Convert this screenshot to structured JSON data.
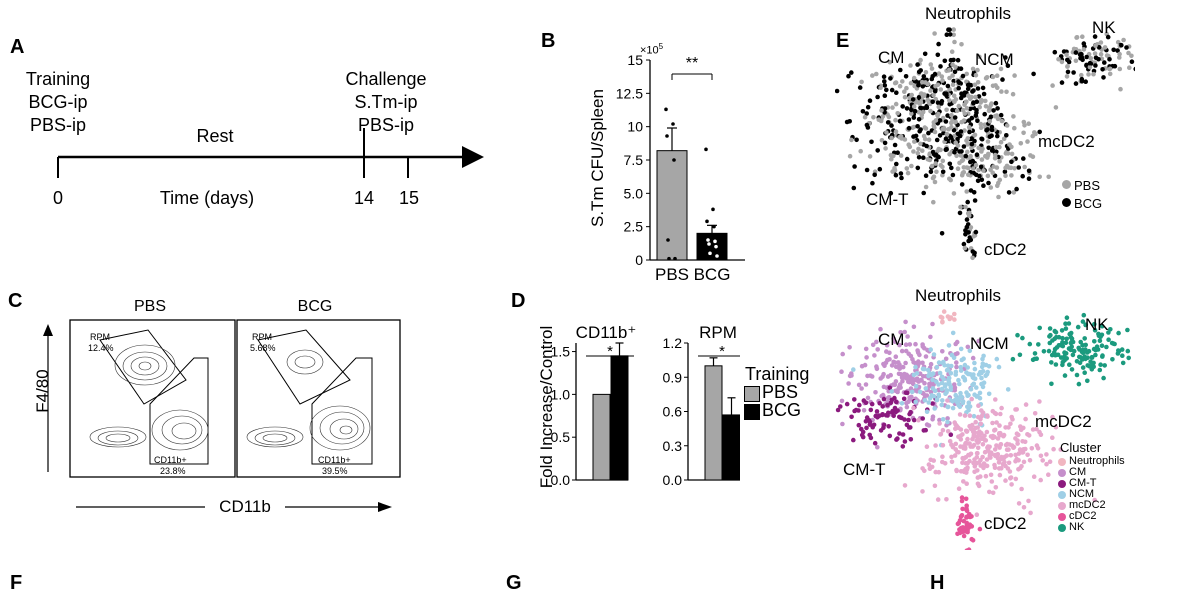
{
  "panel_letters": {
    "A": "A",
    "B": "B",
    "C": "C",
    "D": "D",
    "E": "E",
    "F": "F",
    "G": "G",
    "H": "H"
  },
  "panelA": {
    "training": [
      "Training",
      "BCG-ip",
      "PBS-ip"
    ],
    "challenge": [
      "Challenge",
      "S.Tm-ip",
      "PBS-ip"
    ],
    "rest": "Rest",
    "time_label": "Time (days)",
    "ticks": [
      "0",
      "14",
      "15"
    ]
  },
  "panelB": {
    "ylabel": "S.Tm CFU/Spleen",
    "multiplier": "×10",
    "multiplier_exp": "5",
    "sig": "**"
  },
  "panelC": {
    "pbs": "PBS",
    "bcg": "BCG",
    "ylabel": "F4/80",
    "xlabel": "CD11b",
    "pbs_rpm": "RPM",
    "pbs_rpm_pct": "12.4%",
    "pbs_cd11b": "CD11b+",
    "pbs_cd11b_pct": "23.8%",
    "bcg_rpm": "RPM",
    "bcg_rpm_pct": "5.68%",
    "bcg_cd11b": "CD11b+",
    "bcg_cd11b_pct": "39.5%"
  },
  "panelD": {
    "ylabel": "Fold Increase/Control",
    "legend_title": "Training",
    "legend": [
      "PBS",
      "BCG"
    ],
    "sig": "*"
  },
  "panelE": {
    "top_labels": {
      "neutrophils": "Neutrophils",
      "nk": "NK",
      "cm": "CM",
      "ncm": "NCM",
      "mcdc2": "mcDC2",
      "cmt": "CM-T",
      "cdc2": "cDC2"
    },
    "top_legend": [
      "PBS",
      "BCG"
    ],
    "cluster_title": "Cluster",
    "clusters": [
      {
        "name": "Neutrophils",
        "color": "#f1b6c0"
      },
      {
        "name": "CM",
        "color": "#c58fcb"
      },
      {
        "name": "CM-T",
        "color": "#8b1a7e"
      },
      {
        "name": "NCM",
        "color": "#9fcfe6"
      },
      {
        "name": "mcDC2",
        "color": "#e7a8cd"
      },
      {
        "name": "cDC2",
        "color": "#e6559a"
      },
      {
        "name": "NK",
        "color": "#1b9a7e"
      }
    ]
  },
  "chart_data": [
    {
      "type": "bar",
      "title": "",
      "ylabel": "S.Tm CFU/Spleen (×10^5)",
      "categories": [
        "PBS",
        "BCG"
      ],
      "values": [
        8.2,
        2.0
      ],
      "errors": [
        1.7,
        0.6
      ],
      "ylim": [
        0,
        15
      ],
      "yticks": [
        "0",
        "2.5",
        "5.0",
        "7.5",
        "10",
        "12.5",
        "15"
      ],
      "points": {
        "PBS": [
          11.3,
          10.2,
          9.3,
          7.5,
          1.5,
          0.1,
          0.1
        ],
        "BCG": [
          8.3,
          3.8,
          2.9,
          2.5,
          1.5,
          1.4,
          1.2,
          1.0,
          0.5,
          0.3
        ]
      },
      "colors": [
        "#a6a6a6",
        "#000000"
      ]
    },
    {
      "type": "bar",
      "title": "CD11b⁺",
      "categories": [
        "PBS",
        "BCG"
      ],
      "values": [
        1.0,
        1.45
      ],
      "errors": [
        0.0,
        0.15
      ],
      "ylim": [
        0,
        1.6
      ],
      "yticks": [
        "0.0",
        "0.5",
        "1.0",
        "1.5"
      ],
      "colors": [
        "#a6a6a6",
        "#000000"
      ]
    },
    {
      "type": "bar",
      "title": "RPM",
      "categories": [
        "PBS",
        "BCG"
      ],
      "values": [
        1.0,
        0.57
      ],
      "errors": [
        0.07,
        0.15
      ],
      "ylim": [
        0,
        1.2
      ],
      "yticks": [
        "0.0",
        "0.3",
        "0.6",
        "0.9",
        "1.2"
      ],
      "colors": [
        "#a6a6a6",
        "#000000"
      ]
    }
  ]
}
